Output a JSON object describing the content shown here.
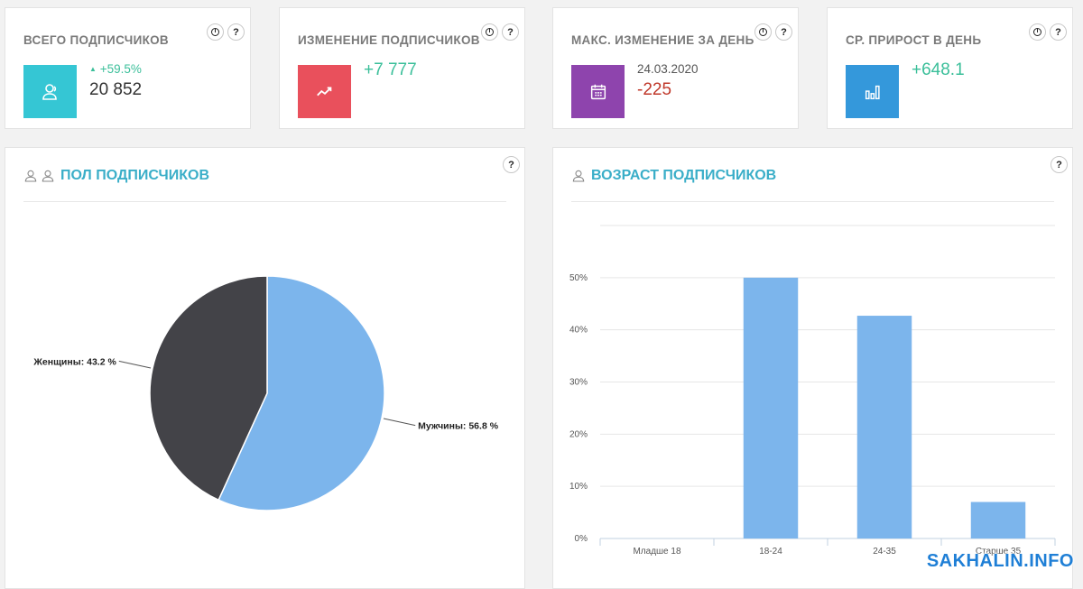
{
  "stats": [
    {
      "title": "ВСЕГО ПОДПИСЧИКОВ",
      "icon": "users-icon",
      "color": "#35c6d4",
      "delta": "+59.5%",
      "value": "20 852"
    },
    {
      "title": "ИЗМЕНЕНИЕ ПОДПИСЧИКОВ",
      "icon": "trend-up-icon",
      "color": "#e9505c",
      "value": "+7 777"
    },
    {
      "title": "МАКС. ИЗМЕНЕНИЕ ЗА ДЕНЬ",
      "icon": "calendar-icon",
      "color": "#8e44ad",
      "date": "24.03.2020",
      "value": "-225"
    },
    {
      "title": "СР. ПРИРОСТ В ДЕНЬ",
      "icon": "bar-chart-icon",
      "color": "#3498db",
      "value": "+648.1"
    }
  ],
  "help_symbol": "?",
  "gender_panel": {
    "title": "ПОЛ ПОДПИСЧИКОВ"
  },
  "age_panel": {
    "title": "ВОЗРАСТ ПОДПИСЧИКОВ"
  },
  "chart_data": [
    {
      "type": "pie",
      "labels": [
        "Мужчины: 56.8 %",
        "Женщины: 43.2 %"
      ],
      "values": [
        56.8,
        43.2
      ],
      "colors": [
        "#7cb5ec",
        "#434348"
      ]
    },
    {
      "type": "bar",
      "categories": [
        "Младше 18",
        "18-24",
        "24-35",
        "Старше 35"
      ],
      "values": [
        0,
        50,
        42.7,
        7
      ],
      "yticks": [
        "0%",
        "10%",
        "20%",
        "30%",
        "40%",
        "50%"
      ],
      "ylim": [
        0,
        60
      ],
      "color": "#7cb5ec",
      "grid": true
    }
  ],
  "watermark": "SAKHALIN.INFO"
}
